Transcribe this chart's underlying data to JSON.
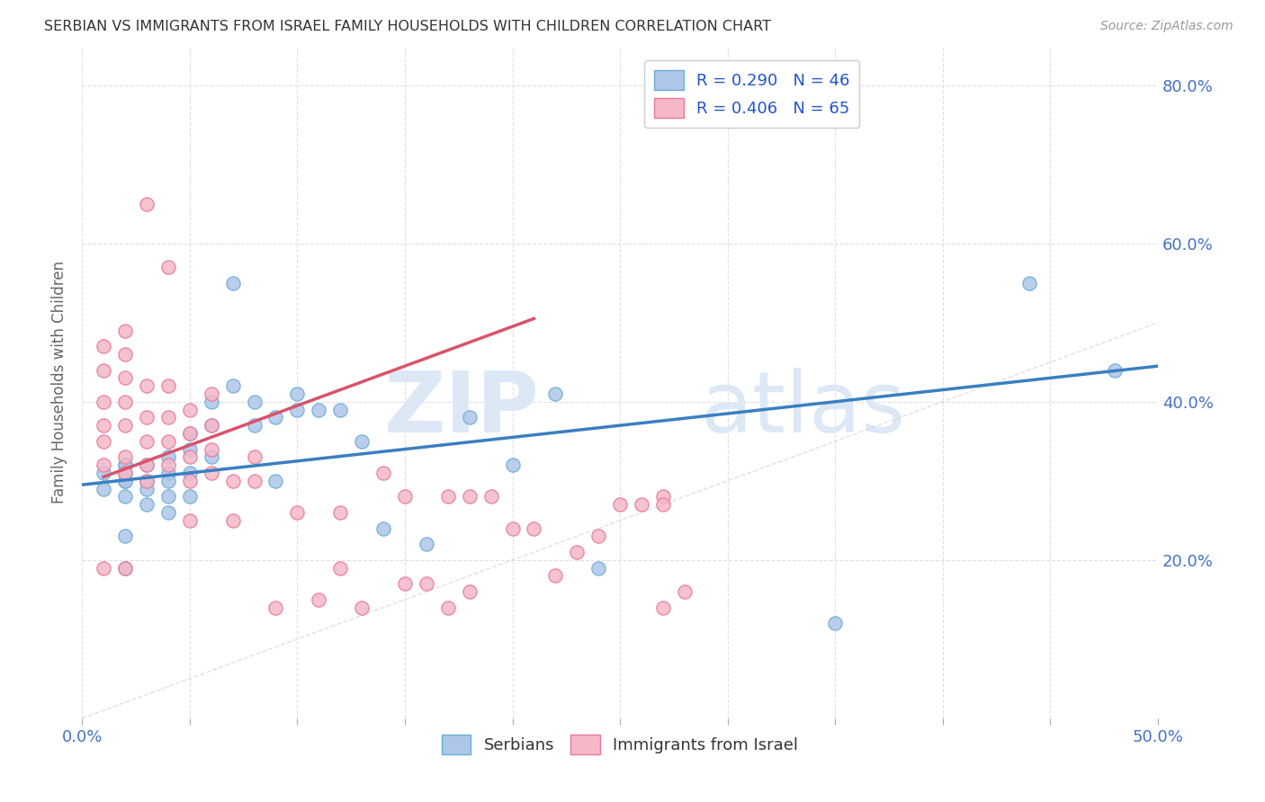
{
  "title": "SERBIAN VS IMMIGRANTS FROM ISRAEL FAMILY HOUSEHOLDS WITH CHILDREN CORRELATION CHART",
  "source": "Source: ZipAtlas.com",
  "ylabel": "Family Households with Children",
  "xlim": [
    0.0,
    0.5
  ],
  "ylim": [
    0.0,
    0.85
  ],
  "legend_label1": "R = 0.290   N = 46",
  "legend_label2": "R = 0.406   N = 65",
  "legend_bottom_label1": "Serbians",
  "legend_bottom_label2": "Immigrants from Israel",
  "blue_color": "#aec6e8",
  "blue_edge_color": "#6baed6",
  "pink_color": "#f4b8c8",
  "pink_edge_color": "#e8799a",
  "blue_line_color": "#3a7fc1",
  "pink_line_color": "#d9536a",
  "diagonal_color": "#cccccc",
  "background_color": "#ffffff",
  "grid_color": "#e0e0e0",
  "title_color": "#333333",
  "axis_tick_color": "#4472c4",
  "ylabel_color": "#666666",
  "watermark_zip_color": "#dce8f5",
  "watermark_atlas_color": "#dce8f5",
  "blue_scatter_x": [
    0.01,
    0.01,
    0.02,
    0.02,
    0.02,
    0.02,
    0.02,
    0.02,
    0.02,
    0.02,
    0.03,
    0.03,
    0.03,
    0.03,
    0.04,
    0.04,
    0.04,
    0.04,
    0.04,
    0.05,
    0.05,
    0.05,
    0.05,
    0.06,
    0.06,
    0.06,
    0.07,
    0.07,
    0.08,
    0.08,
    0.09,
    0.09,
    0.1,
    0.1,
    0.11,
    0.12,
    0.13,
    0.14,
    0.16,
    0.18,
    0.2,
    0.22,
    0.24,
    0.35,
    0.44,
    0.48
  ],
  "blue_scatter_y": [
    0.31,
    0.29,
    0.32,
    0.3,
    0.32,
    0.31,
    0.28,
    0.3,
    0.23,
    0.19,
    0.32,
    0.3,
    0.29,
    0.27,
    0.33,
    0.31,
    0.3,
    0.28,
    0.26,
    0.36,
    0.34,
    0.31,
    0.28,
    0.4,
    0.37,
    0.33,
    0.55,
    0.42,
    0.4,
    0.37,
    0.38,
    0.3,
    0.41,
    0.39,
    0.39,
    0.39,
    0.35,
    0.24,
    0.22,
    0.38,
    0.32,
    0.41,
    0.19,
    0.12,
    0.55,
    0.44
  ],
  "pink_scatter_x": [
    0.01,
    0.01,
    0.01,
    0.01,
    0.01,
    0.01,
    0.01,
    0.02,
    0.02,
    0.02,
    0.02,
    0.02,
    0.02,
    0.02,
    0.02,
    0.03,
    0.03,
    0.03,
    0.03,
    0.03,
    0.03,
    0.04,
    0.04,
    0.04,
    0.04,
    0.04,
    0.05,
    0.05,
    0.05,
    0.05,
    0.05,
    0.06,
    0.06,
    0.06,
    0.06,
    0.07,
    0.07,
    0.08,
    0.08,
    0.09,
    0.1,
    0.11,
    0.12,
    0.12,
    0.13,
    0.14,
    0.15,
    0.15,
    0.16,
    0.17,
    0.17,
    0.18,
    0.18,
    0.19,
    0.2,
    0.21,
    0.22,
    0.23,
    0.24,
    0.25,
    0.26,
    0.27,
    0.27,
    0.27,
    0.28
  ],
  "pink_scatter_y": [
    0.47,
    0.44,
    0.4,
    0.37,
    0.35,
    0.32,
    0.19,
    0.49,
    0.46,
    0.43,
    0.4,
    0.37,
    0.33,
    0.31,
    0.19,
    0.42,
    0.38,
    0.35,
    0.32,
    0.3,
    0.65,
    0.57,
    0.42,
    0.38,
    0.35,
    0.32,
    0.39,
    0.36,
    0.33,
    0.3,
    0.25,
    0.41,
    0.37,
    0.34,
    0.31,
    0.3,
    0.25,
    0.33,
    0.3,
    0.14,
    0.26,
    0.15,
    0.26,
    0.19,
    0.14,
    0.31,
    0.28,
    0.17,
    0.17,
    0.28,
    0.14,
    0.28,
    0.16,
    0.28,
    0.24,
    0.24,
    0.18,
    0.21,
    0.23,
    0.27,
    0.27,
    0.28,
    0.27,
    0.14,
    0.16
  ],
  "blue_trend_x": [
    0.0,
    0.5
  ],
  "blue_trend_y": [
    0.295,
    0.445
  ],
  "pink_trend_x": [
    0.01,
    0.21
  ],
  "pink_trend_y": [
    0.305,
    0.505
  ]
}
